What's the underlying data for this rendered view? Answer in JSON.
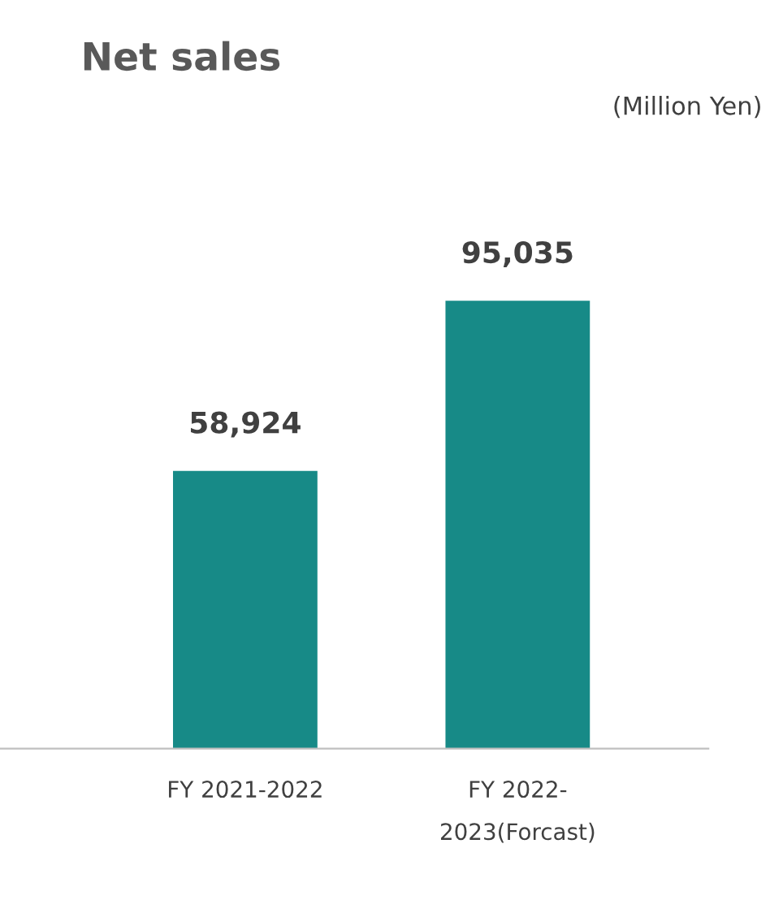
{
  "chart_data": {
    "type": "bar",
    "title": "Net sales",
    "annotations": [
      "(Million Yen)"
    ],
    "categories": [
      "FY 2021-2022",
      "FY 2022-2023(Forcast)"
    ],
    "values": [
      58924,
      95035
    ],
    "colors": [
      "#178a87",
      "#178a87"
    ],
    "value_labels": [
      "58,924",
      "95,035"
    ],
    "grid": false,
    "legend": false
  }
}
